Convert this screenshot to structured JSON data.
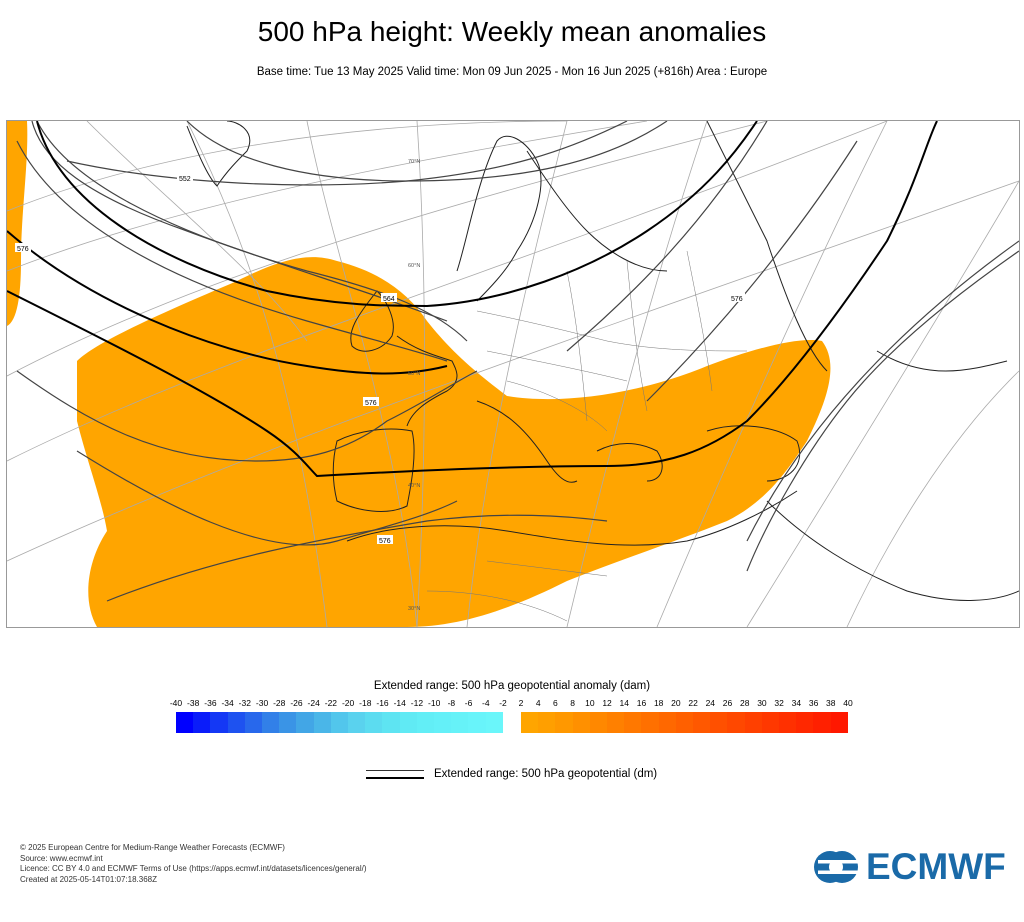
{
  "header": {
    "title": "500 hPa height: Weekly mean anomalies",
    "subtitle": "Base time: Tue 13 May 2025 Valid time: Mon 09 Jun 2025 - Mon 16 Jun 2025 (+816h) Area : Europe"
  },
  "map": {
    "contour_labels": [
      "552",
      "564",
      "576",
      "576",
      "576",
      "576"
    ],
    "latitude_labels": [
      "70°N",
      "60°N",
      "50°N",
      "40°N",
      "30°N"
    ],
    "anomaly_fill_color": "#ffa500",
    "contour_color": "#000000"
  },
  "legend": {
    "colorbar_title": "Extended range: 500 hPa geopotential anomaly (dam)",
    "ticks": [
      "-40",
      "-38",
      "-36",
      "-34",
      "-32",
      "-30",
      "-28",
      "-26",
      "-24",
      "-22",
      "-20",
      "-18",
      "-16",
      "-14",
      "-12",
      "-10",
      "-8",
      "-6",
      "-4",
      "-2",
      "2",
      "4",
      "6",
      "8",
      "10",
      "12",
      "14",
      "16",
      "18",
      "20",
      "22",
      "24",
      "26",
      "28",
      "30",
      "32",
      "34",
      "36",
      "38",
      "40"
    ],
    "negative_colors": [
      "#0000ff",
      "#0a1cfa",
      "#1438f5",
      "#1e52f0",
      "#2868ec",
      "#3280e8",
      "#3a94e6",
      "#42a6e6",
      "#4ab6e8",
      "#52c6ec",
      "#5ad2ee",
      "#5cdcf0",
      "#5ee4f2",
      "#60eaf4",
      "#62eef6",
      "#64f0f8",
      "#66f2f8",
      "#68f4fa",
      "#6af6fa"
    ],
    "positive_colors": [
      "#ffa500",
      "#ff9f00",
      "#ff9800",
      "#ff9000",
      "#ff8800",
      "#ff8000",
      "#ff7800",
      "#ff7000",
      "#ff6800",
      "#ff6000",
      "#ff5800",
      "#ff5000",
      "#ff4800",
      "#ff4000",
      "#ff3800",
      "#ff3000",
      "#ff2800",
      "#ff2000",
      "#ff1800"
    ],
    "line_label": "Extended range: 500 hPa geopotential (dm)"
  },
  "footer": {
    "copyright": "© 2025 European Centre for Medium-Range Weather Forecasts (ECMWF)",
    "source": "Source: www.ecmwf.int",
    "licence": "Licence: CC BY 4.0 and ECMWF Terms of Use (https://apps.ecmwf.int/datasets/licences/general/)",
    "created": "Created at 2025-05-14T01:07:18.368Z"
  },
  "logo": {
    "text": "ECMWF",
    "color": "#1a6aa8"
  }
}
